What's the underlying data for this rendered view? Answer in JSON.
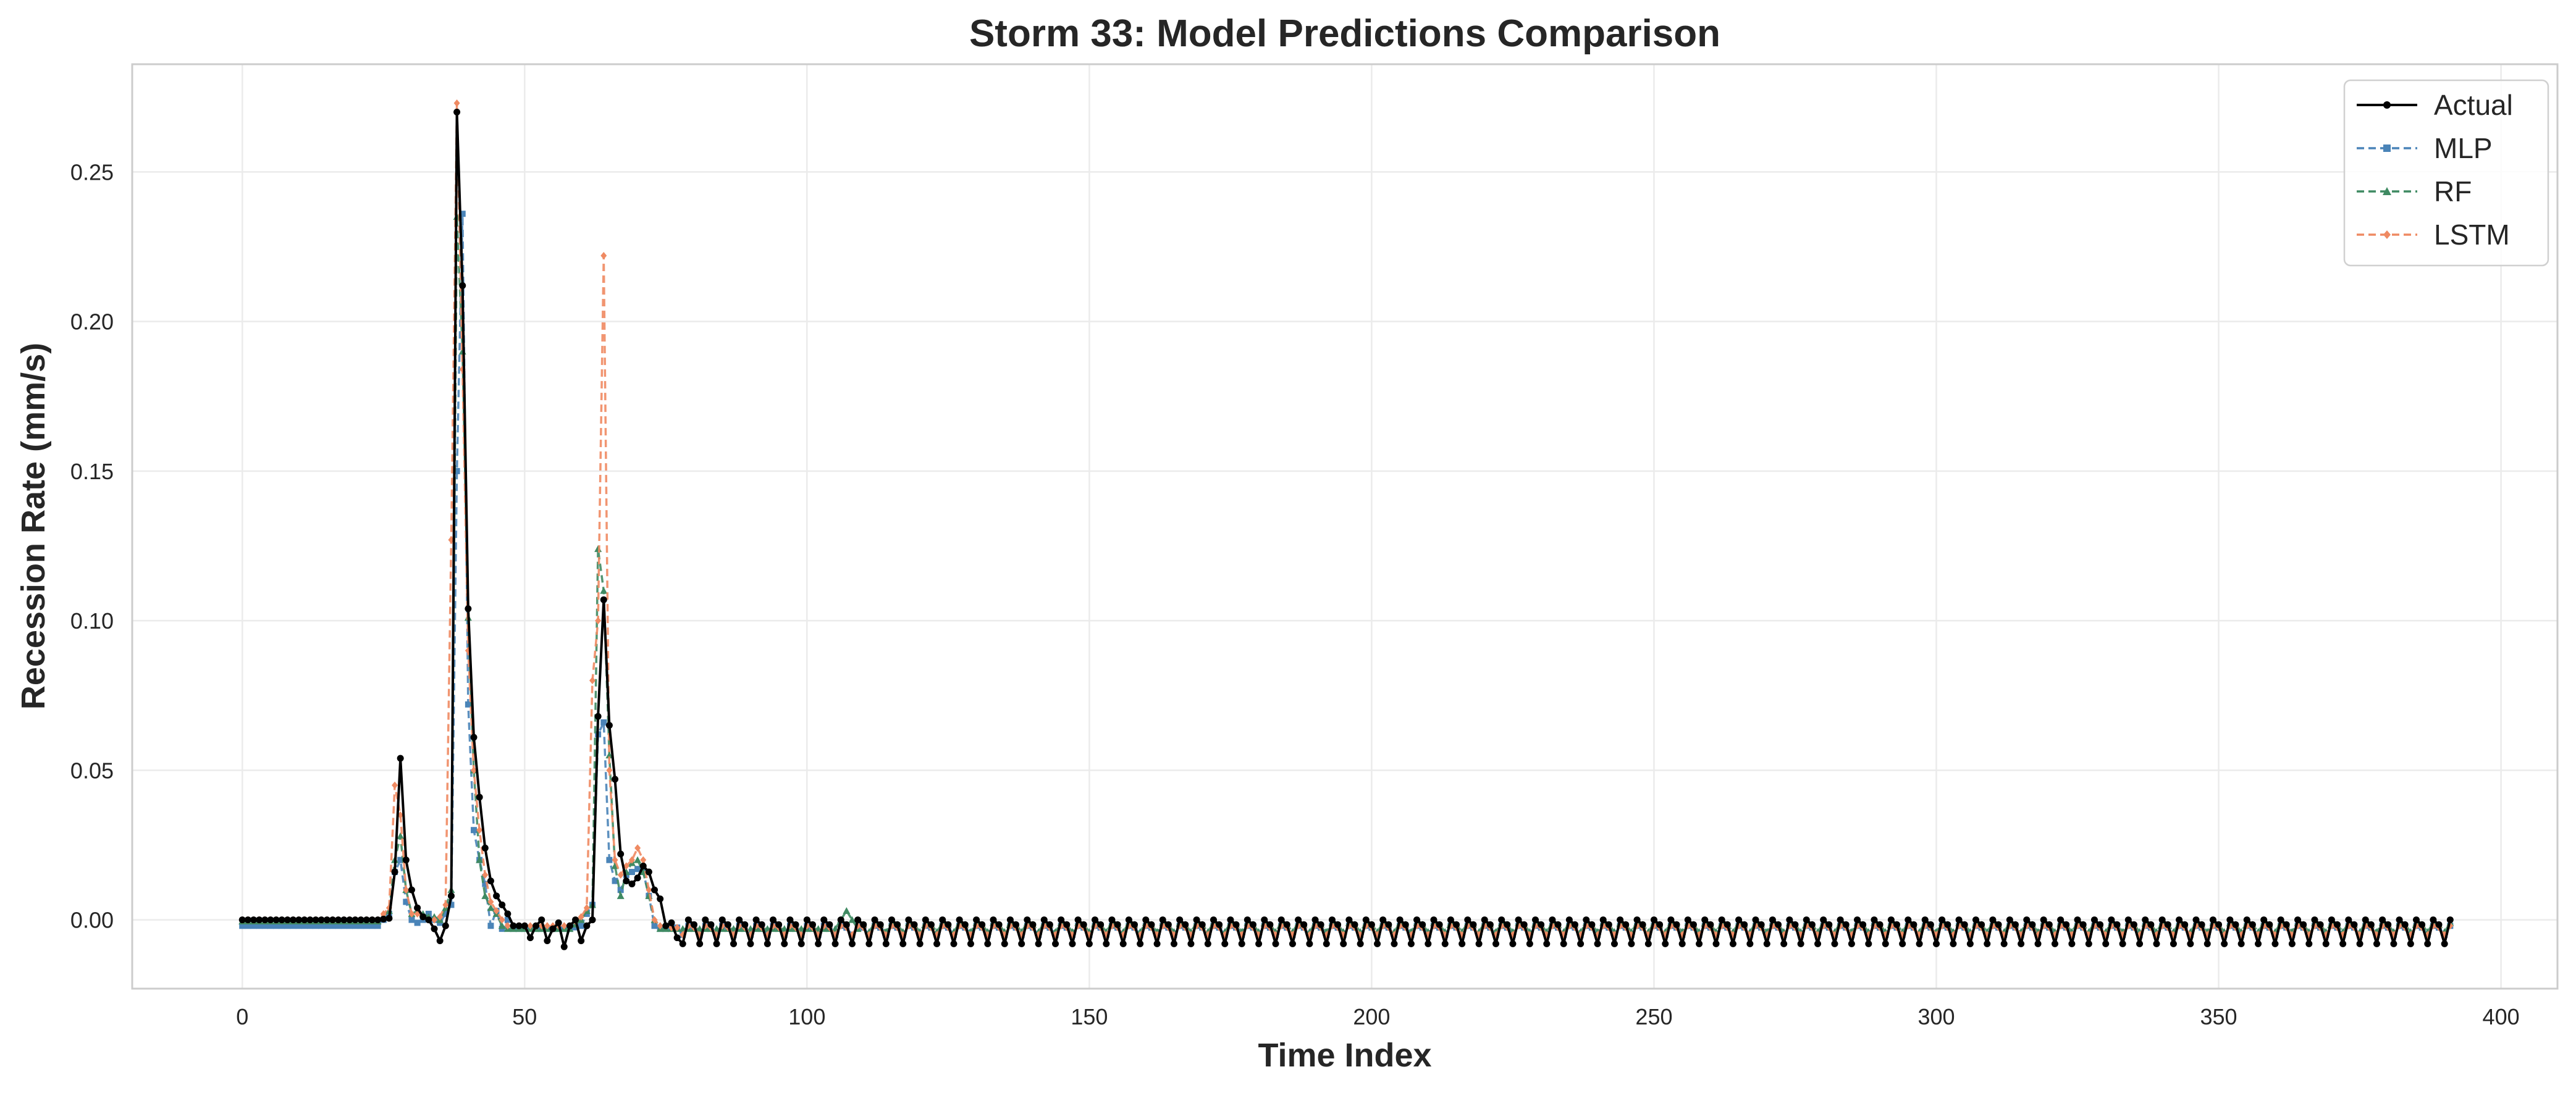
{
  "chart_data": {
    "type": "line",
    "title": "Storm 33: Model Predictions Comparison",
    "xlabel": "Time Index",
    "ylabel": "Recession Rate (mm/s)",
    "xlim": [
      -19.5,
      410
    ],
    "ylim": [
      -0.023,
      0.286
    ],
    "x_ticks": [
      0,
      50,
      100,
      150,
      200,
      250,
      300,
      350,
      400
    ],
    "x_tick_labels": [
      "0",
      "50",
      "100",
      "150",
      "200",
      "250",
      "300",
      "350",
      "400"
    ],
    "y_ticks": [
      0.0,
      0.05,
      0.1,
      0.15,
      0.2,
      0.25
    ],
    "y_tick_labels": [
      "0.00",
      "0.05",
      "0.10",
      "0.15",
      "0.20",
      "0.25"
    ],
    "grid": true,
    "legend_position": "top-right",
    "series": [
      {
        "name": "Actual",
        "color": "#000000",
        "dash": "solid",
        "marker": "circle",
        "keypoints": [
          [
            0,
            0
          ],
          [
            24,
            0
          ],
          [
            26,
            0.0005
          ],
          [
            27,
            0.016
          ],
          [
            28,
            0.054
          ],
          [
            29,
            0.02
          ],
          [
            30,
            0.01
          ],
          [
            31,
            0.004
          ],
          [
            32,
            0.001
          ],
          [
            33,
            0.0
          ],
          [
            34,
            -0.003
          ],
          [
            35,
            -0.007
          ],
          [
            36,
            -0.002
          ],
          [
            37,
            0.008
          ],
          [
            38,
            0.27
          ],
          [
            39,
            0.212
          ],
          [
            40,
            0.104
          ],
          [
            41,
            0.061
          ],
          [
            42,
            0.041
          ],
          [
            43,
            0.024
          ],
          [
            44,
            0.013
          ],
          [
            45,
            0.008
          ],
          [
            46,
            0.005
          ],
          [
            47,
            0.002
          ],
          [
            48,
            -0.002
          ],
          [
            49,
            -0.002
          ],
          [
            50,
            -0.002
          ],
          [
            51,
            -0.006
          ],
          [
            52,
            -0.002
          ],
          [
            53,
            0.0
          ],
          [
            54,
            -0.007
          ],
          [
            55,
            -0.003
          ],
          [
            56,
            -0.001
          ],
          [
            57,
            -0.009
          ],
          [
            58,
            -0.002
          ],
          [
            59,
            0.0
          ],
          [
            60,
            -0.007
          ],
          [
            61,
            -0.002
          ],
          [
            62,
            0.0
          ],
          [
            63,
            0.068
          ],
          [
            64,
            0.107
          ],
          [
            65,
            0.065
          ],
          [
            66,
            0.047
          ],
          [
            67,
            0.022
          ],
          [
            68,
            0.013
          ],
          [
            69,
            0.012
          ],
          [
            70,
            0.014
          ],
          [
            71,
            0.018
          ],
          [
            72,
            0.016
          ],
          [
            73,
            0.01
          ],
          [
            74,
            0.007
          ],
          [
            75,
            -0.002
          ],
          [
            76,
            -0.001
          ],
          [
            77,
            -0.006
          ]
        ]
      },
      {
        "name": "MLP",
        "color": "#4a84b8",
        "dash": "dashed",
        "marker": "square",
        "keypoints": [
          [
            0,
            -0.002
          ],
          [
            24,
            -0.002
          ],
          [
            26,
            0.002
          ],
          [
            27,
            0.016
          ],
          [
            28,
            0.02
          ],
          [
            29,
            0.006
          ],
          [
            30,
            0.0
          ],
          [
            31,
            -0.001
          ],
          [
            32,
            0.0
          ],
          [
            33,
            0.002
          ],
          [
            34,
            0.0
          ],
          [
            35,
            -0.001
          ],
          [
            36,
            0.002
          ],
          [
            37,
            0.005
          ],
          [
            38,
            0.15
          ],
          [
            39,
            0.236
          ],
          [
            40,
            0.072
          ],
          [
            41,
            0.03
          ],
          [
            42,
            0.02
          ],
          [
            43,
            0.012
          ],
          [
            44,
            -0.002
          ],
          [
            45,
            0.003
          ],
          [
            46,
            -0.003
          ],
          [
            47,
            0.0
          ],
          [
            48,
            -0.003
          ],
          [
            49,
            -0.003
          ],
          [
            50,
            -0.003
          ],
          [
            58,
            -0.003
          ],
          [
            60,
            -0.002
          ],
          [
            61,
            0.002
          ],
          [
            62,
            0.005
          ],
          [
            63,
            0.062
          ],
          [
            64,
            0.066
          ],
          [
            65,
            0.02
          ],
          [
            66,
            0.013
          ],
          [
            67,
            0.01
          ],
          [
            68,
            0.015
          ],
          [
            69,
            0.016
          ],
          [
            70,
            0.017
          ],
          [
            71,
            0.016
          ],
          [
            72,
            0.008
          ],
          [
            73,
            -0.002
          ],
          [
            74,
            -0.003
          ],
          [
            75,
            -0.003
          ]
        ]
      },
      {
        "name": "RF",
        "color": "#3f8a62",
        "dash": "dashed",
        "marker": "triangle",
        "keypoints": [
          [
            0,
            -0.0005
          ],
          [
            24,
            -0.0005
          ],
          [
            26,
            0.003
          ],
          [
            27,
            0.02
          ],
          [
            28,
            0.028
          ],
          [
            29,
            0.01
          ],
          [
            30,
            0.002
          ],
          [
            31,
            0.003
          ],
          [
            32,
            0.002
          ],
          [
            33,
            0.001
          ],
          [
            34,
            0.001
          ],
          [
            35,
            0.0
          ],
          [
            36,
            0.004
          ],
          [
            37,
            0.01
          ],
          [
            38,
            0.235
          ],
          [
            39,
            0.19
          ],
          [
            40,
            0.101
          ],
          [
            41,
            0.05
          ],
          [
            42,
            0.02
          ],
          [
            43,
            0.008
          ],
          [
            44,
            0.004
          ],
          [
            45,
            0.002
          ],
          [
            46,
            -0.002
          ],
          [
            47,
            -0.003
          ],
          [
            48,
            -0.003
          ],
          [
            50,
            -0.003
          ],
          [
            58,
            -0.003
          ],
          [
            60,
            0.0
          ],
          [
            61,
            0.003
          ],
          [
            62,
            0.005
          ],
          [
            63,
            0.124
          ],
          [
            64,
            0.11
          ],
          [
            65,
            0.055
          ],
          [
            66,
            0.018
          ],
          [
            67,
            0.008
          ],
          [
            68,
            0.016
          ],
          [
            69,
            0.019
          ],
          [
            70,
            0.02
          ],
          [
            71,
            0.016
          ],
          [
            72,
            0.008
          ],
          [
            73,
            0.0
          ],
          [
            74,
            -0.003
          ],
          [
            75,
            -0.003
          ],
          [
            105,
            -0.003
          ],
          [
            107,
            0.003
          ],
          [
            108,
            0.0
          ],
          [
            109,
            -0.003
          ]
        ]
      },
      {
        "name": "LSTM",
        "color": "#ef8a62",
        "dash": "dashed",
        "marker": "diamond",
        "keypoints": [
          [
            0,
            0.0
          ],
          [
            24,
            0.0
          ],
          [
            26,
            0.004
          ],
          [
            27,
            0.045
          ],
          [
            28,
            0.035
          ],
          [
            29,
            0.01
          ],
          [
            30,
            0.002
          ],
          [
            31,
            0.002
          ],
          [
            32,
            0.001
          ],
          [
            33,
            0.0
          ],
          [
            34,
            0.0
          ],
          [
            35,
            0.001
          ],
          [
            36,
            0.005
          ],
          [
            37,
            0.127
          ],
          [
            38,
            0.273
          ],
          [
            39,
            0.184
          ],
          [
            40,
            0.09
          ],
          [
            41,
            0.05
          ],
          [
            42,
            0.03
          ],
          [
            43,
            0.015
          ],
          [
            44,
            0.006
          ],
          [
            45,
            0.003
          ],
          [
            46,
            0.0
          ],
          [
            47,
            -0.002
          ],
          [
            48,
            -0.002
          ],
          [
            50,
            -0.002
          ],
          [
            58,
            -0.002
          ],
          [
            60,
            0.001
          ],
          [
            61,
            0.004
          ],
          [
            62,
            0.08
          ],
          [
            63,
            0.1
          ],
          [
            64,
            0.222
          ],
          [
            65,
            0.05
          ],
          [
            66,
            0.02
          ],
          [
            67,
            0.015
          ],
          [
            68,
            0.018
          ],
          [
            69,
            0.02
          ],
          [
            70,
            0.024
          ],
          [
            71,
            0.02
          ],
          [
            72,
            0.01
          ],
          [
            73,
            0.0
          ],
          [
            74,
            -0.002
          ],
          [
            75,
            -0.002
          ]
        ]
      }
    ],
    "tail": {
      "start": 78,
      "end": 391,
      "actual_high": 0.0,
      "actual_low": -0.008,
      "models_high": -0.002,
      "models_low": -0.005,
      "rf_high": -0.001,
      "rf_low": -0.004
    }
  }
}
